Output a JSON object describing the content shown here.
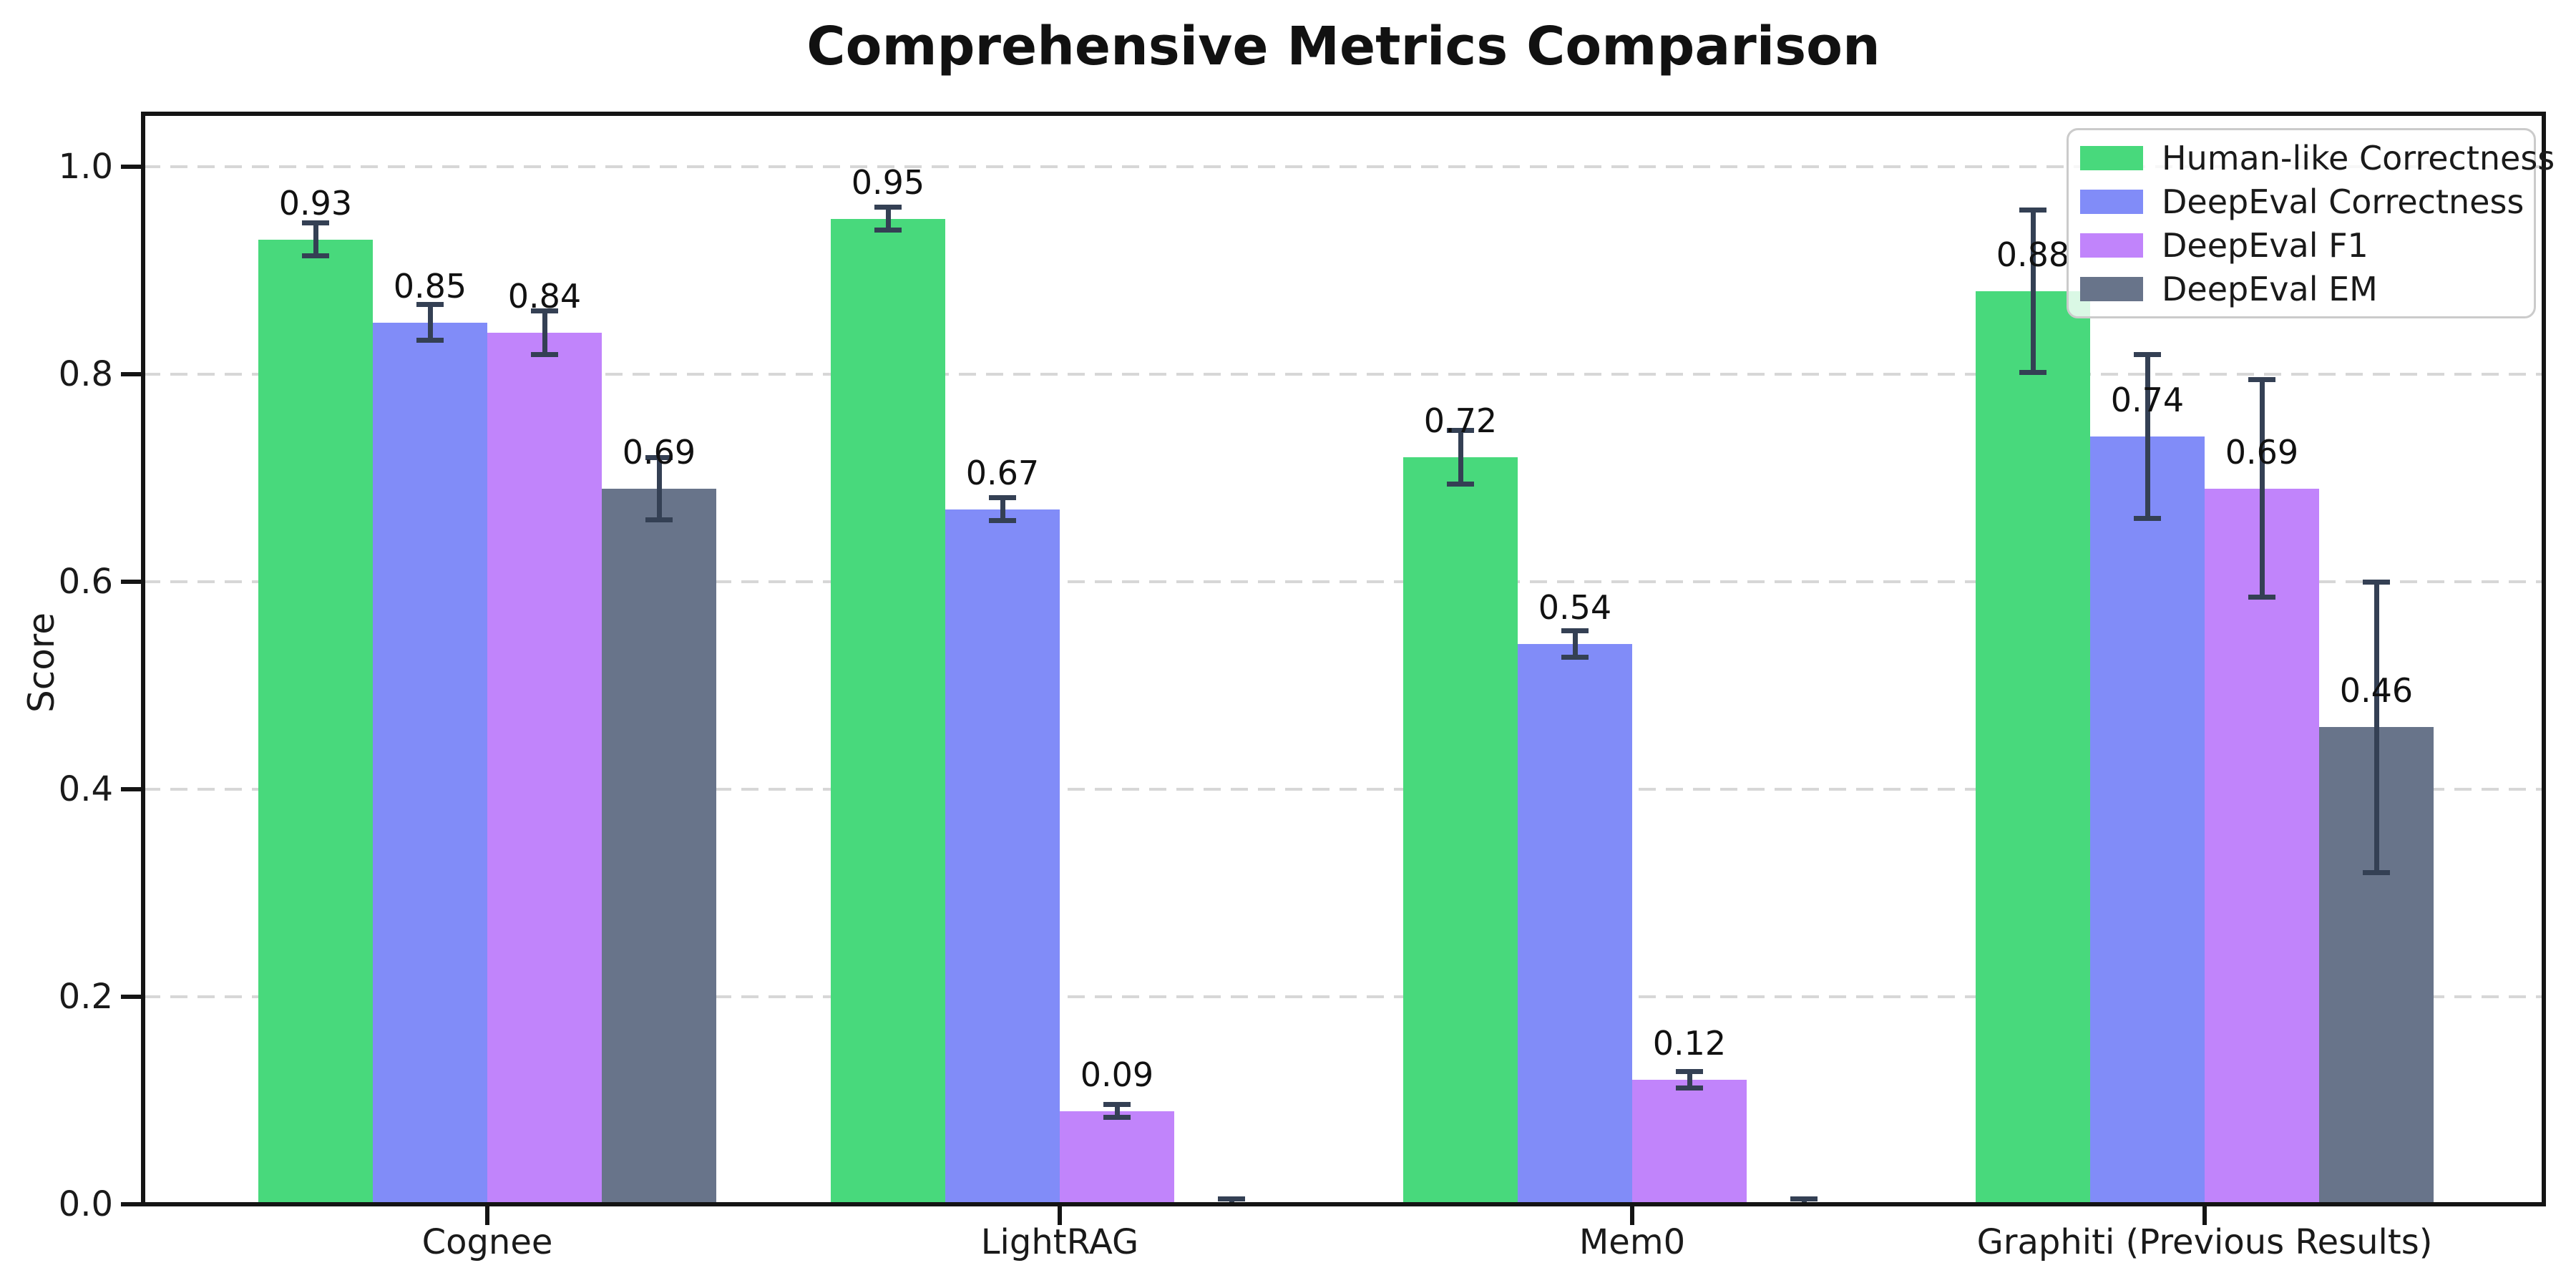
{
  "chart_data": {
    "type": "bar",
    "title": "Comprehensive Metrics Comparison",
    "ylabel": "Score",
    "xlabel": "",
    "categories": [
      "Cognee",
      "LightRAG",
      "Mem0",
      "Graphiti (Previous Results)"
    ],
    "series": [
      {
        "name": "Human-like Correctness",
        "color": "#48d97c",
        "values": [
          0.93,
          0.95,
          0.72,
          0.88
        ],
        "errors": [
          0.016,
          0.011,
          0.026,
          0.078
        ],
        "labels": [
          "0.93",
          "0.95",
          "0.72",
          "0.88"
        ]
      },
      {
        "name": "DeepEval Correctness",
        "color": "#818cf8",
        "values": [
          0.85,
          0.67,
          0.54,
          0.74
        ],
        "errors": [
          0.017,
          0.011,
          0.013,
          0.079
        ],
        "labels": [
          "0.85",
          "0.67",
          "0.54",
          "0.74"
        ]
      },
      {
        "name": "DeepEval F1",
        "color": "#c184fb",
        "values": [
          0.84,
          0.09,
          0.12,
          0.69
        ],
        "errors": [
          0.021,
          0.006,
          0.008,
          0.105
        ],
        "labels": [
          "0.84",
          "0.09",
          "0.12",
          "0.69"
        ]
      },
      {
        "name": "DeepEval EM",
        "color": "#68748a",
        "values": [
          0.69,
          0.0,
          0.0,
          0.46
        ],
        "errors": [
          0.03,
          0.005,
          0.005,
          0.14
        ],
        "labels": [
          "0.69",
          "",
          "",
          "0.46"
        ]
      }
    ],
    "yticks": [
      0.0,
      0.2,
      0.4,
      0.6,
      0.8,
      1.0
    ],
    "ytick_labels": [
      "0.0",
      "0.2",
      "0.4",
      "0.6",
      "0.8",
      "1.0"
    ],
    "ylim": [
      0.0,
      1.051
    ],
    "grid": "horizontal-dashed",
    "legend_position": "upper-right",
    "error_bar_color": "#344054"
  }
}
